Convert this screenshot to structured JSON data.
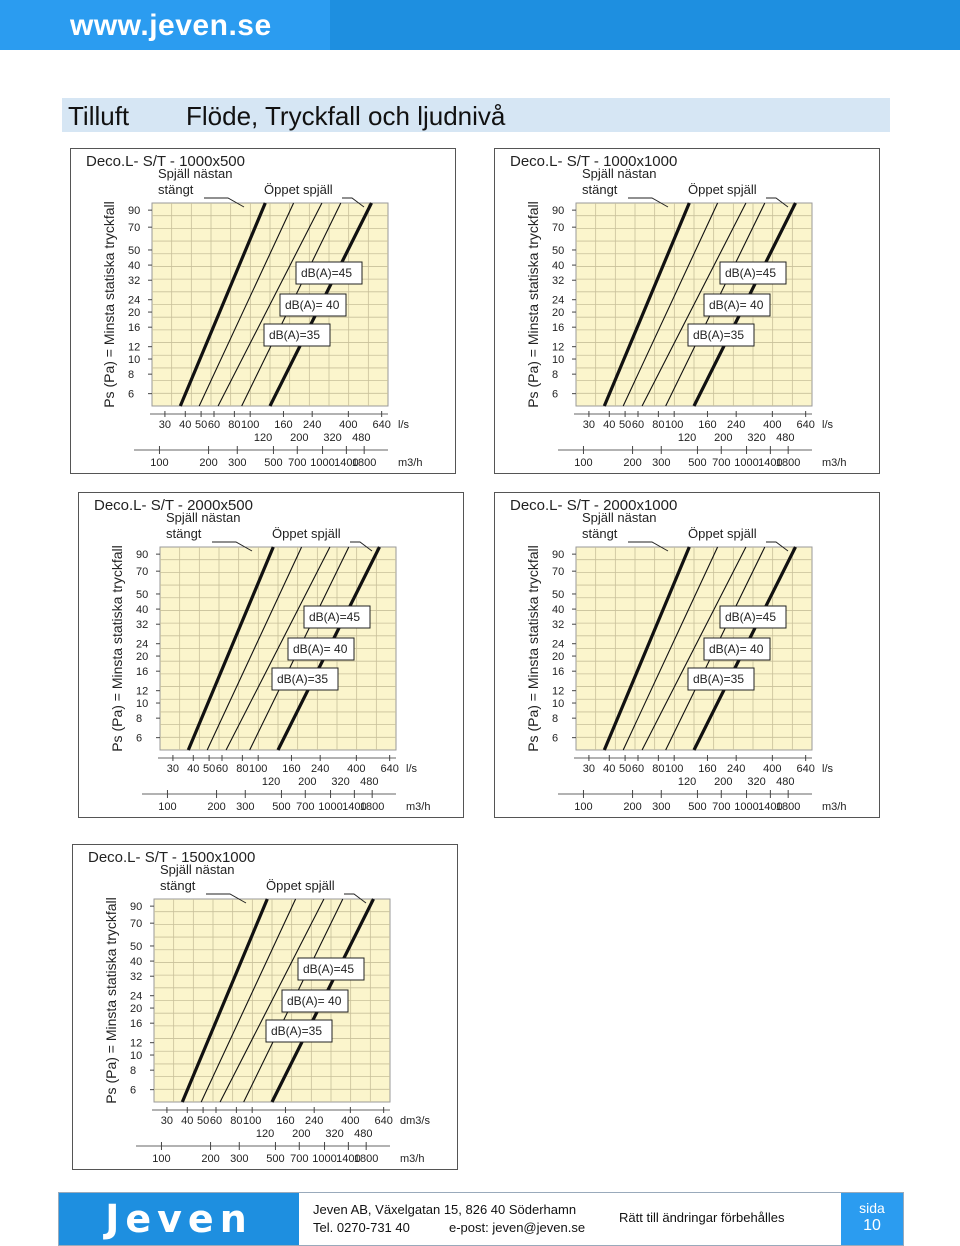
{
  "header": {
    "url": "www.jeven.se"
  },
  "title": {
    "section": "Tilluft",
    "heading": "Flöde, Tryckfall och ljudnivå"
  },
  "chart_common": {
    "ylabel": "Ps (Pa) = Minsta statiska tryckfall",
    "y_ticks": [
      "90",
      "70",
      "50",
      "40",
      "32",
      "24",
      "20",
      "16",
      "12",
      "10",
      "8",
      "6"
    ],
    "ls_ticks_top": [
      "30",
      "40",
      "50",
      "60",
      "80",
      "100",
      "160",
      "240",
      "400",
      "640"
    ],
    "ls_ticks_bottom": [
      "120",
      "200",
      "320",
      "480"
    ],
    "m3h_ticks": [
      "100",
      "200",
      "300",
      "500",
      "700",
      "1000",
      "1400",
      "1800"
    ],
    "m3h_unit": "m3/h",
    "closed_label_1": "Spjäll nästan",
    "closed_label_2": "stängt",
    "open_label": "Öppet spjäll",
    "db_labels": [
      "dB(A)=45",
      "dB(A)= 40",
      "dB(A)=35"
    ],
    "colors": {
      "grid_bg": "#fbf5cc",
      "grid_line": "#c8c09a",
      "curve": "#111111",
      "accent": "#1e8fe0"
    }
  },
  "chart_data": [
    {
      "type": "line",
      "title": "Deco.L- S/T - 1000x500",
      "ls_unit": "l/s",
      "ls_ticks_top": [
        "30",
        "40",
        "50",
        "60",
        "80",
        "100",
        "160",
        "240",
        "400",
        "640"
      ]
    },
    {
      "type": "line",
      "title": "Deco.L- S/T - 1000x1000",
      "ls_unit": "l/s",
      "ls_ticks_top": [
        "30",
        "40",
        "50",
        "60",
        "80",
        "100",
        "160",
        "240",
        "400",
        "640"
      ]
    },
    {
      "type": "line",
      "title": "Deco.L- S/T - 2000x500",
      "ls_unit": "l/s",
      "ls_ticks_top": [
        "30",
        "40",
        "50",
        "60",
        "80",
        "100",
        "160",
        "240",
        "400",
        "640"
      ]
    },
    {
      "type": "line",
      "title": "Deco.L- S/T - 2000x1000",
      "ls_unit": "l/s",
      "ls_ticks_top": [
        "30",
        "40",
        "50",
        "60",
        "80",
        "100",
        "160",
        "240",
        "400",
        "640"
      ]
    },
    {
      "type": "line",
      "title": "Deco.L- S/T - 1500x1000",
      "ls_unit": "dm3/s",
      "ls_ticks_top": [
        "30",
        "40",
        "50",
        "60",
        "80",
        "100",
        "160",
        "240",
        "400",
        "640"
      ]
    }
  ],
  "footer": {
    "logo": "Jeven",
    "address": "Jeven AB,  Växelgatan 15, 826 40 Söderhamn",
    "tel": "Tel. 0270-731 40",
    "email": "e-post: jeven@jeven.se",
    "rights": "Rätt till ändringar förbehålles",
    "page_label": "sida",
    "page_number": "10"
  }
}
